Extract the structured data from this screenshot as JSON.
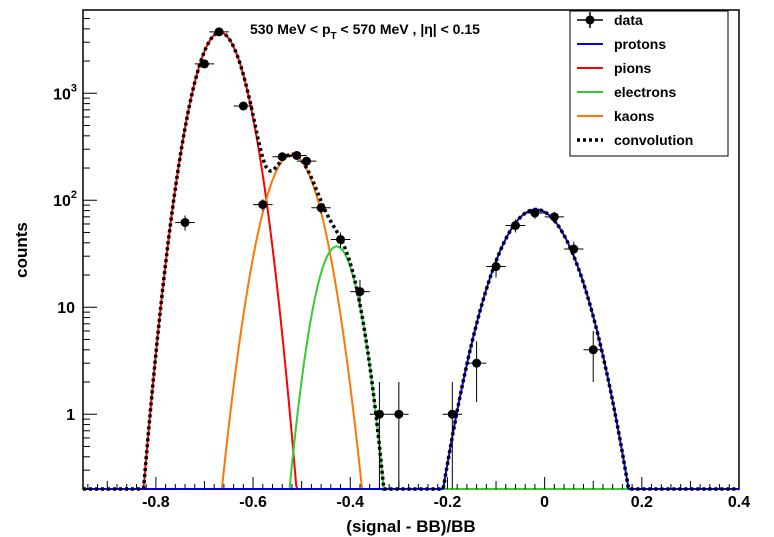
{
  "chart_data": {
    "type": "scatter",
    "title_parts": {
      "prefix": "530 MeV < p",
      "subscript": "T",
      "suffix": " < 570 MeV , |η| < 0.15"
    },
    "xlabel": "(signal - BB)/BB",
    "ylabel": "counts",
    "xlim": [
      -0.95,
      0.4
    ],
    "ylim": [
      0.2,
      6000
    ],
    "yscale": "log",
    "xticks": [
      {
        "value": -0.8,
        "label": "-0.8"
      },
      {
        "value": -0.6,
        "label": "-0.6"
      },
      {
        "value": -0.4,
        "label": "-0.4"
      },
      {
        "value": -0.2,
        "label": "-0.2"
      },
      {
        "value": 0,
        "label": "0"
      },
      {
        "value": 0.2,
        "label": "0.2"
      },
      {
        "value": 0.4,
        "label": "0.4"
      }
    ],
    "yticks": [
      {
        "value": 1,
        "label": "1"
      },
      {
        "value": 10,
        "label": "10"
      },
      {
        "value": 100,
        "label": "10",
        "exp": "2"
      },
      {
        "value": 1000,
        "label": "10",
        "exp": "3"
      }
    ],
    "grid": false,
    "legend_position": "top-right",
    "legend": [
      {
        "name": "data",
        "color": "#000000",
        "style": "marker"
      },
      {
        "name": "protons",
        "color": "#0000ff",
        "style": "solid"
      },
      {
        "name": "pions",
        "color": "#ff0000",
        "style": "solid"
      },
      {
        "name": "electrons",
        "color": "#33cc33",
        "style": "solid"
      },
      {
        "name": "kaons",
        "color": "#ff7700",
        "style": "solid"
      },
      {
        "name": "convolution",
        "color": "#000000",
        "style": "dotted"
      }
    ],
    "components": [
      {
        "name": "pions",
        "color": "#ff0000",
        "amp": 3700,
        "mean": -0.668,
        "sigma": 0.0355
      },
      {
        "name": "kaons",
        "color": "#ff7700",
        "amp": 268,
        "mean": -0.52,
        "sigma": 0.038
      },
      {
        "name": "electrons",
        "color": "#33cc33",
        "amp": 37,
        "mean": -0.428,
        "sigma": 0.03
      },
      {
        "name": "protons",
        "color": "#0000ff",
        "amp": 82,
        "mean": -0.018,
        "sigma": 0.055
      }
    ],
    "data_points": [
      {
        "x": -0.74,
        "y": 62,
        "ylo": 52,
        "yhi": 72
      },
      {
        "x": -0.7,
        "y": 1880,
        "ylo": 1800,
        "yhi": 1960
      },
      {
        "x": -0.67,
        "y": 3750,
        "ylo": 3620,
        "yhi": 3880
      },
      {
        "x": -0.62,
        "y": 760,
        "ylo": 710,
        "yhi": 810
      },
      {
        "x": -0.58,
        "y": 91,
        "ylo": 80,
        "yhi": 102
      },
      {
        "x": -0.54,
        "y": 255,
        "ylo": 238,
        "yhi": 272
      },
      {
        "x": -0.51,
        "y": 262,
        "ylo": 245,
        "yhi": 279
      },
      {
        "x": -0.49,
        "y": 232,
        "ylo": 216,
        "yhi": 248
      },
      {
        "x": -0.46,
        "y": 85,
        "ylo": 75,
        "yhi": 95
      },
      {
        "x": -0.42,
        "y": 43,
        "ylo": 36,
        "yhi": 50
      },
      {
        "x": -0.38,
        "y": 14,
        "ylo": 10.5,
        "yhi": 18
      },
      {
        "x": -0.34,
        "y": 1,
        "ylo": 0.2,
        "yhi": 2.0
      },
      {
        "x": -0.3,
        "y": 1,
        "ylo": 0.2,
        "yhi": 2.0
      },
      {
        "x": -0.19,
        "y": 1,
        "ylo": 0.2,
        "yhi": 2.0
      },
      {
        "x": -0.14,
        "y": 3,
        "ylo": 1.3,
        "yhi": 4.8
      },
      {
        "x": -0.1,
        "y": 24,
        "ylo": 19,
        "yhi": 29
      },
      {
        "x": -0.06,
        "y": 58,
        "ylo": 50,
        "yhi": 66
      },
      {
        "x": -0.02,
        "y": 76,
        "ylo": 67,
        "yhi": 85
      },
      {
        "x": 0.02,
        "y": 70,
        "ylo": 62,
        "yhi": 78
      },
      {
        "x": 0.06,
        "y": 35,
        "ylo": 29,
        "yhi": 41
      },
      {
        "x": 0.1,
        "y": 4,
        "ylo": 2.0,
        "yhi": 6.0
      }
    ],
    "x_halfwidth": 0.02
  }
}
